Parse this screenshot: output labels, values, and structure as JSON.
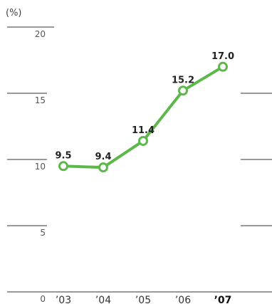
{
  "colors": {
    "series": "#5cb848",
    "grid": "#333333",
    "marker_fill": "#ffffff"
  },
  "chart_data": {
    "type": "line",
    "title": "",
    "xlabel": "",
    "ylabel": "(%)",
    "categories": [
      "’03",
      "’04",
      "’05",
      "’06",
      "’07"
    ],
    "highlight_category": "’07",
    "series": [
      {
        "values": [
          9.5,
          9.4,
          11.4,
          15.2,
          17.0
        ]
      }
    ],
    "data_labels": [
      "9.5",
      "9.4",
      "11.4",
      "15.2",
      "17.0"
    ],
    "yticks": [
      0,
      5,
      10,
      15,
      20
    ],
    "ylim": [
      0,
      20
    ],
    "grid": true
  }
}
